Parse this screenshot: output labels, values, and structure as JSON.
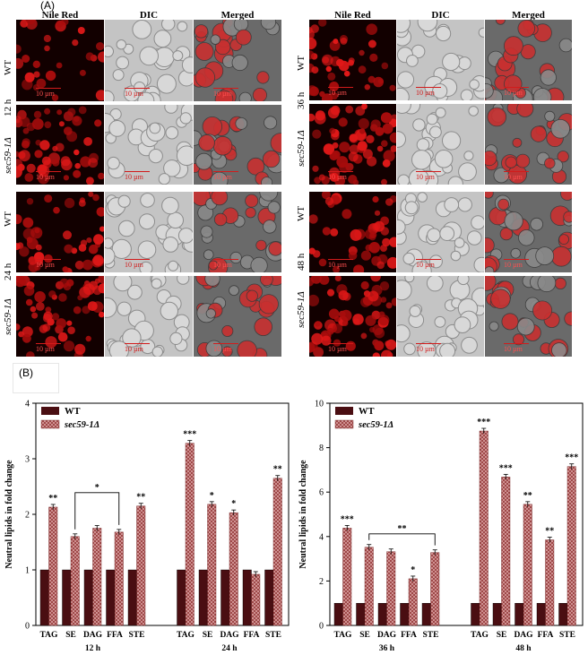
{
  "panel_a": {
    "label": "(A)",
    "column_headers": [
      "Nile Red",
      "DIC",
      "Merged"
    ],
    "scale_bar": "10 µm",
    "time_labels": {
      "t12": "12 h",
      "t24": "24 h",
      "t36": "36 h",
      "t48": "48 h"
    },
    "strain_labels": {
      "wt": "WT",
      "mut": "sec59-1Δ"
    }
  },
  "panel_b": {
    "label": "(B)",
    "colors": {
      "wt": "#4a0e12",
      "mut": "#d9a0a0",
      "mut_pattern": "#8a2a2a"
    }
  },
  "chart_data": [
    {
      "type": "bar",
      "ylabel": "Neutral lipids in fold change",
      "ylim": [
        0,
        4
      ],
      "yticks": [
        0,
        1,
        2,
        3,
        4
      ],
      "legend": [
        "WT",
        "sec59-1Δ"
      ],
      "legend_position": "top-left",
      "groups": [
        {
          "name": "12 h",
          "categories": [
            "TAG",
            "SE",
            "DAG",
            "FFA",
            "STE"
          ],
          "wt": [
            1,
            1,
            1,
            1,
            1
          ],
          "mut": [
            2.13,
            1.6,
            1.75,
            1.68,
            2.15
          ],
          "stars": [
            "**",
            "",
            "",
            "",
            "**"
          ]
        },
        {
          "name": "24 h",
          "categories": [
            "TAG",
            "SE",
            "DAG",
            "FFA",
            "STE"
          ],
          "wt": [
            1,
            1,
            1,
            1,
            1
          ],
          "mut": [
            3.28,
            2.18,
            2.03,
            0.92,
            2.65
          ],
          "stars": [
            "***",
            "*",
            "*",
            "",
            "**"
          ]
        }
      ],
      "brackets": [
        {
          "label": "*"
        }
      ]
    },
    {
      "type": "bar",
      "ylabel": "Neutral lipids in fold change",
      "ylim": [
        0,
        10
      ],
      "yticks": [
        0,
        2,
        4,
        6,
        8,
        10
      ],
      "legend": [
        "WT",
        "sec59-1Δ"
      ],
      "legend_position": "top-left",
      "groups": [
        {
          "name": "36 h",
          "categories": [
            "TAG",
            "SE",
            "DAG",
            "FFA",
            "STE"
          ],
          "wt": [
            1,
            1,
            1,
            1,
            1
          ],
          "mut": [
            4.38,
            3.52,
            3.32,
            2.1,
            3.28
          ],
          "stars": [
            "***",
            "",
            "",
            "*",
            ""
          ]
        },
        {
          "name": "48 h",
          "categories": [
            "TAG",
            "SE",
            "DAG",
            "FFA",
            "STE"
          ],
          "wt": [
            1,
            1,
            1,
            1,
            1
          ],
          "mut": [
            8.75,
            6.68,
            5.45,
            3.85,
            7.15
          ],
          "stars": [
            "***",
            "***",
            "**",
            "**",
            "***"
          ]
        }
      ],
      "brackets": [
        {
          "label": "**"
        }
      ]
    }
  ]
}
